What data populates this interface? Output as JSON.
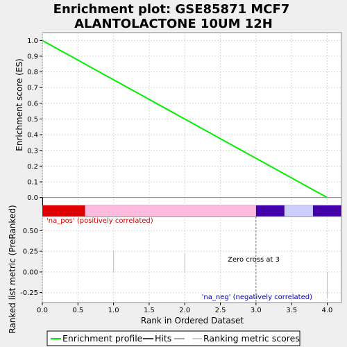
{
  "chart_data": {
    "type": "line",
    "title_lines": [
      "Enrichment plot: GSE85871 MCF7",
      "ALANTOLACTONE 10UM 12H"
    ],
    "top_panel": {
      "ylabel": "Enrichment score (ES)",
      "xlim": [
        0,
        4.2
      ],
      "ylim": [
        -0.05,
        1.05
      ],
      "yticks": [
        "0.0",
        "0.1",
        "0.2",
        "0.3",
        "0.4",
        "0.5",
        "0.6",
        "0.7",
        "0.8",
        "0.9",
        "1.0"
      ],
      "series": [
        {
          "name": "Enrichment profile",
          "color": "#00ee00",
          "x": [
            0,
            4.0
          ],
          "y": [
            1.0,
            0.0
          ]
        }
      ]
    },
    "bottom_panel": {
      "ylabel": "Ranked list metric (PreRanked)",
      "xlabel": "Rank in Ordered Dataset",
      "xlim": [
        0,
        4.2
      ],
      "ylim": [
        -0.37,
        0.67
      ],
      "yticks": [
        "0.50",
        "0.25",
        "0.00",
        "-0.25"
      ],
      "xticks": [
        "0.0",
        "0.5",
        "1.0",
        "1.5",
        "2.0",
        "2.5",
        "3.0",
        "3.5",
        "4.0"
      ],
      "ranking_metric_bars": [
        {
          "x": 1.0,
          "y": 0.25
        },
        {
          "x": 2.0,
          "y": 0.22
        },
        {
          "x": 4.0,
          "y": -0.32
        }
      ],
      "color_bar_segments": [
        {
          "x0": 0.0,
          "x1": 0.6,
          "color": "#dd0000"
        },
        {
          "x0": 0.6,
          "x1": 3.0,
          "color": "#ffbbdd"
        },
        {
          "x0": 3.0,
          "x1": 3.4,
          "color": "#4400aa"
        },
        {
          "x0": 3.4,
          "x1": 3.8,
          "color": "#ccccff"
        },
        {
          "x0": 3.8,
          "x1": 4.2,
          "color": "#4400aa"
        }
      ],
      "zero_cross_x": 3.0,
      "zero_cross_label": "Zero cross at 3",
      "pos_label": "'na_pos' (positively correlated)",
      "neg_label": "'na_neg' (negatively correlated)",
      "pos_color": "#cc0000",
      "neg_color": "#0000aa"
    },
    "legend": {
      "items": [
        {
          "label": "Enrichment profile",
          "color": "#00ee00"
        },
        {
          "label": "Hits",
          "color": "#000000"
        },
        {
          "label": "Ranking metric scores",
          "color": "#bbbbbb"
        }
      ]
    }
  }
}
